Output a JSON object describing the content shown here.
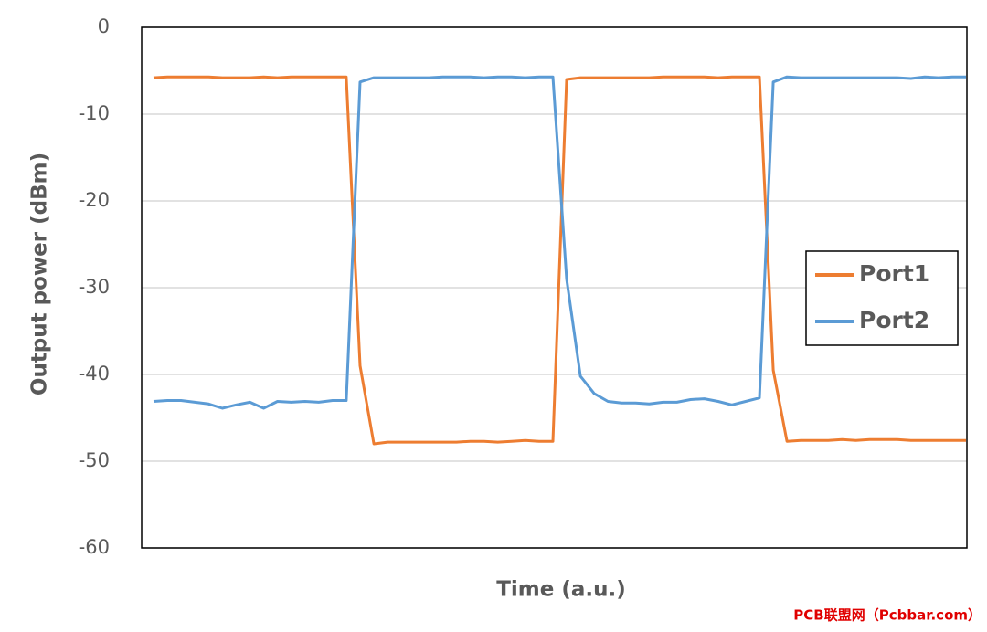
{
  "chart_data": {
    "type": "line",
    "x_label": "Time (a.u.)",
    "y_label": "Output power (dBm)",
    "watermark": "PCB联盟网（Pcbbar.com）",
    "categories": [
      null,
      null,
      null,
      null,
      null,
      null,
      null,
      null,
      null,
      null,
      null,
      null,
      null,
      null,
      null,
      null,
      null,
      null,
      null,
      null,
      null,
      null,
      null,
      null,
      null,
      null,
      null,
      null,
      null,
      null,
      null,
      null,
      null,
      null,
      null,
      null,
      null,
      null,
      null,
      null,
      null,
      null,
      null,
      null,
      null,
      null,
      null,
      null,
      null,
      null,
      null,
      null,
      null,
      null,
      null,
      null,
      null,
      null,
      null,
      null
    ],
    "series": [
      {
        "name": "Port1",
        "color": "#ed7d31",
        "values": [
          -5.8,
          -5.7,
          -5.7,
          -5.7,
          -5.7,
          -5.8,
          -5.8,
          -5.8,
          -5.7,
          -5.8,
          -5.7,
          -5.7,
          -5.7,
          -5.7,
          -5.7,
          -39,
          -48,
          -47.8,
          -47.8,
          -47.8,
          -47.8,
          -47.8,
          -47.8,
          -47.7,
          -47.7,
          -47.8,
          -47.7,
          -47.6,
          -47.7,
          -47.7,
          -6,
          -5.8,
          -5.8,
          -5.8,
          -5.8,
          -5.8,
          -5.8,
          -5.7,
          -5.7,
          -5.7,
          -5.7,
          -5.8,
          -5.7,
          -5.7,
          -5.7,
          -39.5,
          -47.7,
          -47.6,
          -47.6,
          -47.6,
          -47.5,
          -47.6,
          -47.5,
          -47.5,
          -47.5,
          -47.6,
          -47.6,
          -47.6,
          -47.6,
          -47.6
        ]
      },
      {
        "name": "Port2",
        "color": "#5b9bd5",
        "values": [
          -43.1,
          -43,
          -43,
          -43.2,
          -43.4,
          -43.9,
          -43.5,
          -43.2,
          -43.9,
          -43.1,
          -43.2,
          -43.1,
          -43.2,
          -43,
          -43,
          -6.3,
          -5.8,
          -5.8,
          -5.8,
          -5.8,
          -5.8,
          -5.7,
          -5.7,
          -5.7,
          -5.8,
          -5.7,
          -5.7,
          -5.8,
          -5.7,
          -5.7,
          -29,
          -40.2,
          -42.2,
          -43.1,
          -43.3,
          -43.3,
          -43.4,
          -43.2,
          -43.2,
          -42.9,
          -42.8,
          -43.1,
          -43.5,
          -43.1,
          -42.7,
          -6.3,
          -5.7,
          -5.8,
          -5.8,
          -5.8,
          -5.8,
          -5.8,
          -5.8,
          -5.8,
          -5.8,
          -5.9,
          -5.7,
          -5.8,
          -5.7,
          -5.7
        ]
      }
    ],
    "ylim": [
      -60,
      0
    ],
    "yticks": [
      0,
      -10,
      -20,
      -30,
      -40,
      -50,
      -60
    ],
    "grid": true,
    "legend": "right"
  }
}
